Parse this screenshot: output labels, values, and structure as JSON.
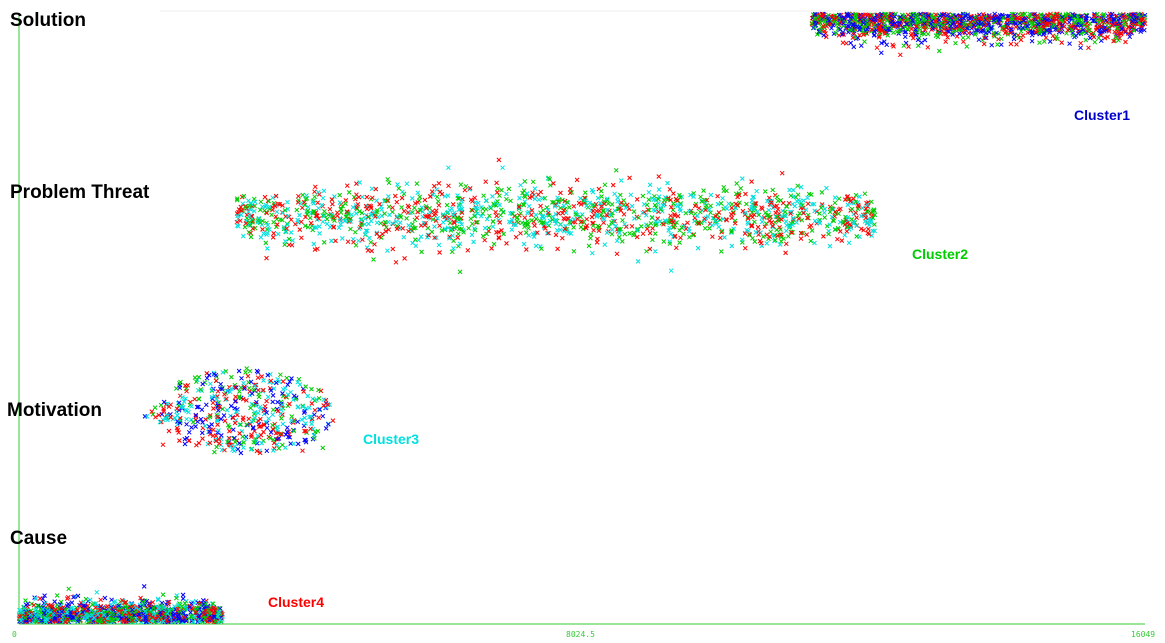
{
  "chart_data": {
    "type": "scatter",
    "title": "",
    "xlabel": "",
    "ylabel": "",
    "xlim": [
      0,
      16049
    ],
    "x_ticks": [
      "0",
      "8024.5",
      "16049"
    ],
    "y_categories": [
      "Solution",
      "Problem Threat",
      "Motivation",
      "Cause"
    ],
    "marker": "x",
    "point_colors": [
      "#ff0000",
      "#0000ff",
      "#00cc00",
      "#00e0e0"
    ],
    "axis_color": "#33cc33",
    "grid": false,
    "clusters": [
      {
        "name": "Cluster1",
        "label_color": "#0000cc",
        "category": "Solution",
        "x_range": [
          11300,
          16049
        ],
        "x_center": 13700,
        "point_count": 1400,
        "colors": [
          "#0000ff",
          "#ff0000",
          "#00cc00"
        ]
      },
      {
        "name": "Cluster2",
        "label_color": "#00cc00",
        "category": "Problem Threat",
        "x_range": [
          3100,
          12200
        ],
        "x_center": 7600,
        "point_count": 1500,
        "colors": [
          "#00e0e0",
          "#00cc00",
          "#ff0000"
        ]
      },
      {
        "name": "Cluster3",
        "label_color": "#00e0e0",
        "category": "Motivation",
        "x_range": [
          2000,
          4600
        ],
        "x_center": 3200,
        "point_count": 500,
        "colors": [
          "#0000ff",
          "#ff0000",
          "#00cc00",
          "#00e0e0"
        ]
      },
      {
        "name": "Cluster4",
        "label_color": "#ff0000",
        "category": "Cause",
        "x_range": [
          0,
          2900
        ],
        "x_center": 1400,
        "point_count": 1200,
        "colors": [
          "#00cc00",
          "#0000ff",
          "#ff0000",
          "#00e0e0"
        ]
      }
    ]
  }
}
